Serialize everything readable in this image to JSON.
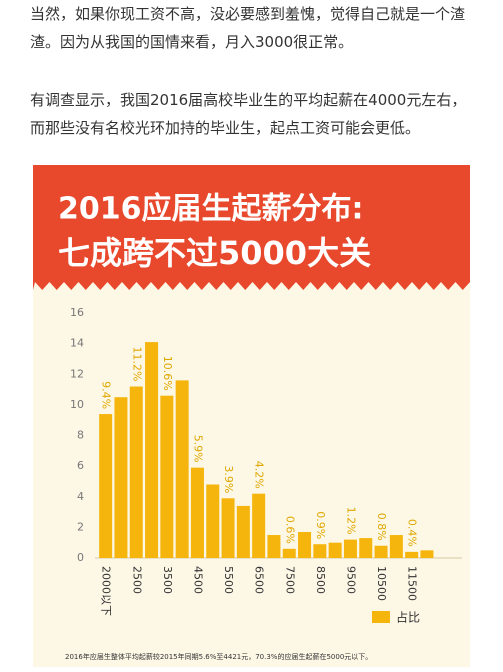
{
  "paragraphs": [
    [
      "当然，如果你现工资不高，没必要感到羞愧，觉得自己就是一个渣",
      "渣。因为从我国的国情来看，月入3000很正常。"
    ],
    [
      "有调查显示，我国2016届高校毕业生的平均起薪在4000元左右，",
      "而那些没有名校光环加持的毕业生，起点工资可能会更低。"
    ]
  ],
  "chart_data": {
    "type": "bar",
    "title": "2016应届生起薪分布:",
    "subtitle": "七成跨不过5000大关",
    "categories": [
      "2000以下",
      null,
      "2500",
      null,
      "3500",
      null,
      "4500",
      null,
      "5500",
      null,
      "6500",
      null,
      "7500",
      null,
      "8500",
      null,
      "9500",
      null,
      "10500",
      null,
      "11500",
      null
    ],
    "series": [
      {
        "name": "占比",
        "color": "#f5b50c",
        "values": [
          9.4,
          10.5,
          11.2,
          14.1,
          10.6,
          11.6,
          5.9,
          4.8,
          3.9,
          3.4,
          4.2,
          1.5,
          0.6,
          1.7,
          0.9,
          1.0,
          1.2,
          1.3,
          0.8,
          1.5,
          0.4,
          0.5
        ],
        "value_labels": [
          "9.4%",
          null,
          "11.2%",
          null,
          "10.6%",
          null,
          "5.9%",
          null,
          "3.9%",
          null,
          "4.2%",
          null,
          "0.6%",
          null,
          "0.9%",
          null,
          "1.2%",
          null,
          "0.8%",
          null,
          "0.4%",
          null
        ]
      }
    ],
    "ylim": [
      0,
      16
    ],
    "yticks": [
      0,
      2,
      4,
      6,
      8,
      10,
      12,
      14,
      16
    ],
    "grid": false,
    "legend": "bottom-right",
    "footnote": "2016年应届生整体平均起薪较2015年同期5.6%至4421元，70.3%的应届生起薪在5000元以下。"
  }
}
